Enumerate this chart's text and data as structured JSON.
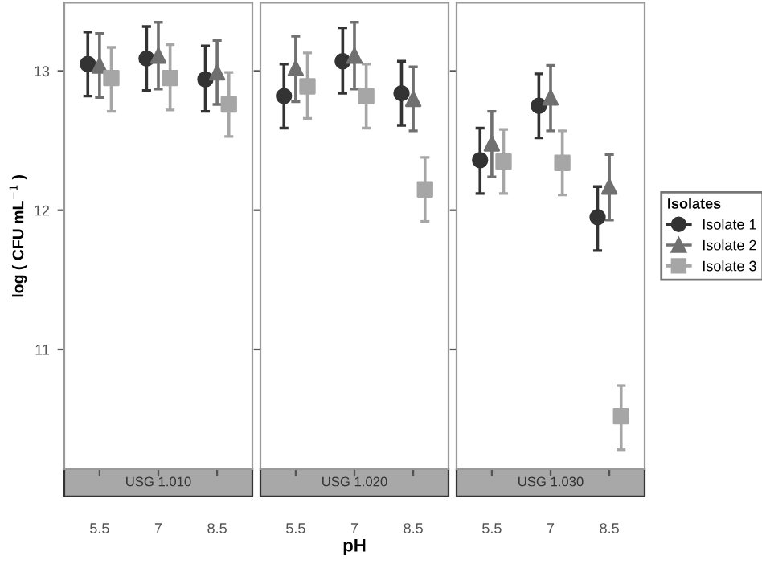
{
  "chart_data": [
    {
      "type": "scatter",
      "title": "USG 1.010",
      "ylabel": "log ( CFU mL$^{−1}$ )",
      "categories": [
        "5.5",
        "7",
        "8.5"
      ],
      "ylim": [
        10.14,
        13.49
      ],
      "yticks": [
        11,
        12,
        13
      ],
      "grid": false,
      "series": [
        {
          "color": "#333333",
          "marker": "circle",
          "values": [
            13.05,
            13.09,
            12.94
          ],
          "errors": [
            [
              12.82,
              13.28
            ],
            [
              12.86,
              13.32
            ],
            [
              12.71,
              13.18
            ]
          ]
        },
        {
          "color": "#707070",
          "marker": "triangle",
          "values": [
            13.04,
            13.11,
            12.99
          ],
          "errors": [
            [
              12.81,
              13.27
            ],
            [
              12.87,
              13.35
            ],
            [
              12.76,
              13.22
            ]
          ]
        },
        {
          "color": "#a6a6a6",
          "marker": "square",
          "values": [
            12.95,
            12.95,
            12.76
          ],
          "errors": [
            [
              12.71,
              13.17
            ],
            [
              12.72,
              13.19
            ],
            [
              12.53,
              12.99
            ]
          ]
        }
      ]
    },
    {
      "type": "scatter",
      "title": "USG 1.020",
      "xlabel": "pH",
      "categories": [
        "5.5",
        "7",
        "8.5"
      ],
      "ylim": [
        10.14,
        13.49
      ],
      "yticks": [
        11,
        12,
        13
      ],
      "grid": false,
      "tick_labels": "x",
      "series": [
        {
          "color": "#333333",
          "marker": "circle",
          "values": [
            12.82,
            13.07,
            12.84
          ],
          "errors": [
            [
              12.59,
              13.05
            ],
            [
              12.84,
              13.31
            ],
            [
              12.61,
              13.07
            ]
          ]
        },
        {
          "color": "#707070",
          "marker": "triangle",
          "values": [
            13.02,
            13.11,
            12.8
          ],
          "errors": [
            [
              12.78,
              13.25
            ],
            [
              12.87,
              13.35
            ],
            [
              12.57,
              13.03
            ]
          ]
        },
        {
          "color": "#a6a6a6",
          "marker": "square",
          "values": [
            12.89,
            12.82,
            12.15
          ],
          "errors": [
            [
              12.66,
              13.13
            ],
            [
              12.59,
              13.05
            ],
            [
              11.92,
              12.38
            ]
          ]
        }
      ]
    },
    {
      "type": "scatter",
      "title": "USG 1.030",
      "categories": [
        "5.5",
        "7",
        "8.5"
      ],
      "ylim": [
        10.14,
        13.49
      ],
      "yticks": [
        11,
        12,
        13
      ],
      "grid": false,
      "tick_labels": "x",
      "legend": "right",
      "legend_title": "Isolates",
      "series": [
        {
          "name": "Isolate 1",
          "color": "#333333",
          "marker": "circle",
          "values": [
            12.36,
            12.75,
            11.95
          ],
          "errors": [
            [
              12.12,
              12.59
            ],
            [
              12.52,
              12.98
            ],
            [
              11.71,
              12.17
            ]
          ]
        },
        {
          "name": "Isolate 2",
          "color": "#707070",
          "marker": "triangle",
          "values": [
            12.48,
            12.81,
            12.17
          ],
          "errors": [
            [
              12.24,
              12.71
            ],
            [
              12.57,
              13.04
            ],
            [
              11.93,
              12.4
            ]
          ]
        },
        {
          "name": "Isolate 3",
          "color": "#a6a6a6",
          "marker": "square",
          "values": [
            12.35,
            12.34,
            10.52
          ],
          "errors": [
            [
              12.12,
              12.58
            ],
            [
              12.11,
              12.57
            ],
            [
              10.28,
              10.74
            ]
          ]
        }
      ]
    }
  ]
}
